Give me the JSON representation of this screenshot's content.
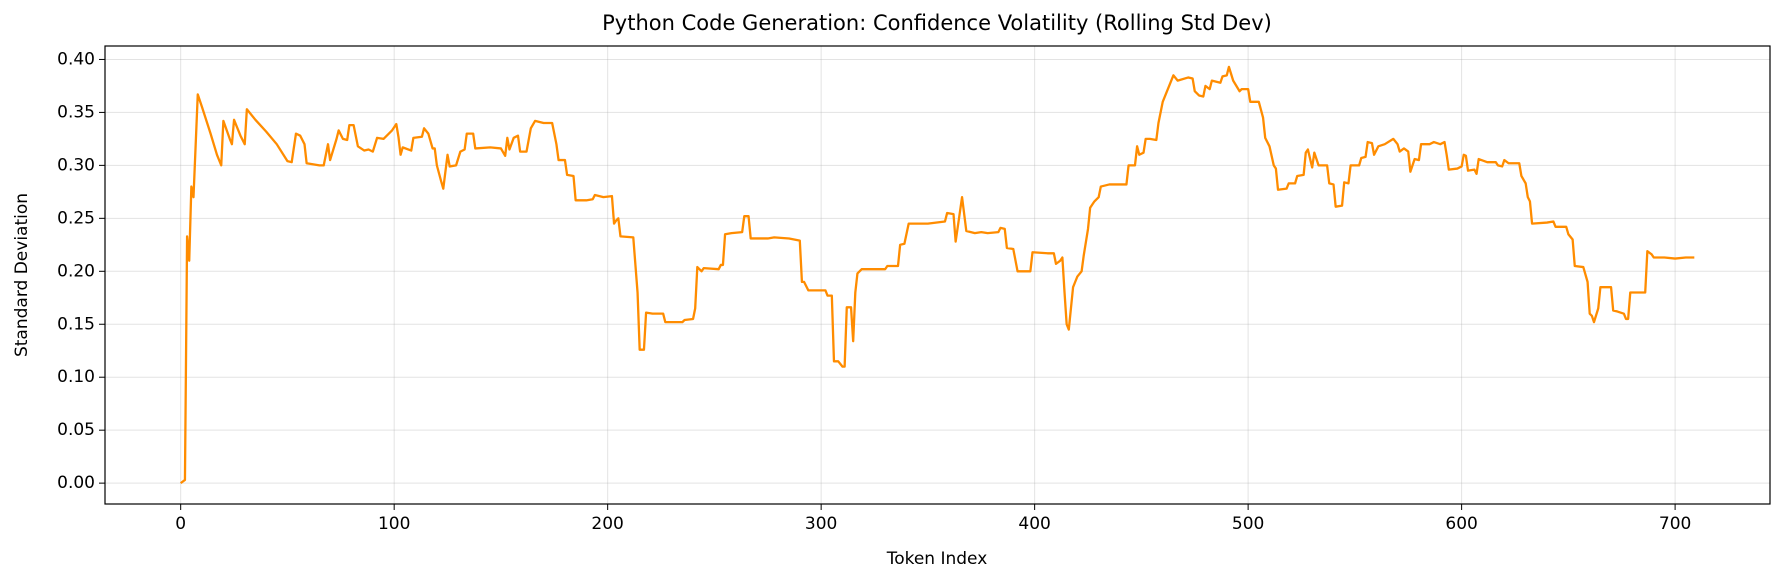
{
  "chart_data": {
    "type": "line",
    "title": "Python Code Generation: Confidence Volatility (Rolling Std Dev)",
    "xlabel": "Token Index",
    "ylabel": "Standard Deviation",
    "color": "#ff8c00",
    "grid": true,
    "xlim": [
      -35.45,
      744.45
    ],
    "xticks": [
      0,
      100,
      200,
      300,
      400,
      500,
      600,
      700
    ],
    "ylim": [
      -0.0197,
      0.4127
    ],
    "yticks": [
      {
        "value": 0,
        "label": "0.00"
      },
      0.05,
      {
        "value": 0.1,
        "label": "0.10"
      },
      0.15,
      {
        "value": 0.2,
        "label": "0.20"
      },
      0.25,
      {
        "value": 0.3,
        "label": "0.30"
      },
      0.35,
      {
        "value": 0.4,
        "label": "0.40"
      }
    ],
    "x": [
      0,
      2,
      3,
      4,
      5,
      6,
      8,
      10,
      14,
      17,
      19,
      20,
      23,
      24,
      25,
      28,
      30,
      31,
      35,
      40,
      45,
      50,
      52,
      54,
      56,
      58,
      59,
      65,
      67,
      69,
      70,
      73,
      74,
      76,
      78,
      79,
      81,
      83,
      86,
      88,
      90,
      92,
      95,
      99,
      101,
      102,
      103,
      104,
      108,
      109,
      113,
      114,
      116,
      118,
      119,
      120,
      122,
      123,
      125,
      126,
      129,
      131,
      133,
      134,
      137,
      138,
      145,
      150,
      152,
      153,
      154,
      156,
      158,
      159,
      162,
      164,
      166,
      170,
      174,
      176,
      177,
      180,
      181,
      184,
      185,
      190,
      193,
      194,
      198,
      202,
      203,
      204,
      205,
      206,
      212,
      214,
      215,
      217,
      218,
      221,
      226,
      227,
      235,
      236,
      240,
      241,
      242,
      244,
      245,
      252,
      253,
      254,
      255,
      258,
      263,
      264,
      266,
      267,
      275,
      278,
      285,
      290,
      291,
      292,
      294,
      302,
      303,
      305,
      306,
      308,
      310,
      311,
      312,
      314,
      315,
      316,
      317,
      319,
      330,
      331,
      336,
      337,
      339,
      341,
      350,
      358,
      359,
      362,
      363,
      365,
      366,
      368,
      372,
      375,
      378,
      383,
      384,
      386,
      387,
      390,
      392,
      398,
      399,
      406,
      409,
      410,
      412,
      413,
      414,
      415,
      416,
      418,
      419,
      420,
      422,
      423,
      425,
      426,
      428,
      430,
      431,
      435,
      443,
      444,
      447,
      448,
      449,
      451,
      452,
      454,
      457,
      458,
      460,
      462,
      463,
      465,
      467,
      472,
      474,
      475,
      477,
      479,
      480,
      482,
      483,
      487,
      488,
      490,
      491,
      493,
      496,
      497,
      500,
      501,
      505,
      507,
      508,
      510,
      512,
      513,
      514,
      518,
      519,
      522,
      523,
      526,
      527,
      528,
      530,
      531,
      533,
      537,
      538,
      540,
      541,
      544,
      545,
      547,
      548,
      552,
      553,
      555,
      556,
      558,
      559,
      561,
      564,
      568,
      570,
      571,
      573,
      575,
      576,
      578,
      580,
      581,
      585,
      587,
      590,
      592,
      593,
      594,
      598,
      600,
      601,
      602,
      603,
      606,
      607,
      608,
      612,
      616,
      617,
      619,
      620,
      622,
      627,
      628,
      630,
      631,
      632,
      633,
      640,
      643,
      644,
      649,
      650,
      652,
      653,
      657,
      659,
      660,
      661,
      662,
      664,
      665,
      670,
      671,
      673,
      676,
      677,
      678,
      679,
      685,
      686,
      687,
      689,
      690,
      695,
      700,
      705,
      709
    ],
    "values": [
      0.0,
      0.003,
      0.233,
      0.21,
      0.28,
      0.27,
      0.367,
      0.355,
      0.33,
      0.31,
      0.3,
      0.342,
      0.325,
      0.32,
      0.343,
      0.328,
      0.32,
      0.353,
      0.343,
      0.332,
      0.32,
      0.304,
      0.303,
      0.33,
      0.328,
      0.32,
      0.302,
      0.3,
      0.3,
      0.32,
      0.305,
      0.325,
      0.333,
      0.325,
      0.324,
      0.338,
      0.338,
      0.318,
      0.314,
      0.315,
      0.313,
      0.326,
      0.325,
      0.333,
      0.339,
      0.327,
      0.31,
      0.317,
      0.314,
      0.326,
      0.327,
      0.335,
      0.33,
      0.316,
      0.316,
      0.3,
      0.285,
      0.278,
      0.31,
      0.299,
      0.3,
      0.313,
      0.315,
      0.33,
      0.33,
      0.316,
      0.317,
      0.316,
      0.309,
      0.326,
      0.315,
      0.326,
      0.328,
      0.313,
      0.313,
      0.335,
      0.342,
      0.34,
      0.34,
      0.32,
      0.305,
      0.305,
      0.291,
      0.29,
      0.267,
      0.267,
      0.268,
      0.272,
      0.27,
      0.271,
      0.245,
      0.248,
      0.25,
      0.233,
      0.232,
      0.18,
      0.126,
      0.126,
      0.161,
      0.16,
      0.16,
      0.152,
      0.152,
      0.154,
      0.155,
      0.165,
      0.204,
      0.2,
      0.203,
      0.202,
      0.206,
      0.206,
      0.235,
      0.236,
      0.237,
      0.252,
      0.252,
      0.231,
      0.231,
      0.232,
      0.231,
      0.229,
      0.19,
      0.19,
      0.182,
      0.182,
      0.177,
      0.177,
      0.115,
      0.115,
      0.11,
      0.11,
      0.166,
      0.166,
      0.134,
      0.18,
      0.198,
      0.202,
      0.202,
      0.205,
      0.205,
      0.225,
      0.226,
      0.245,
      0.245,
      0.247,
      0.255,
      0.254,
      0.228,
      0.256,
      0.27,
      0.238,
      0.236,
      0.237,
      0.236,
      0.237,
      0.241,
      0.24,
      0.222,
      0.221,
      0.2,
      0.2,
      0.218,
      0.217,
      0.217,
      0.207,
      0.21,
      0.213,
      0.18,
      0.15,
      0.145,
      0.185,
      0.19,
      0.195,
      0.2,
      0.215,
      0.24,
      0.26,
      0.266,
      0.27,
      0.28,
      0.282,
      0.282,
      0.3,
      0.3,
      0.318,
      0.31,
      0.312,
      0.325,
      0.325,
      0.324,
      0.34,
      0.36,
      0.37,
      0.375,
      0.385,
      0.38,
      0.383,
      0.382,
      0.37,
      0.366,
      0.365,
      0.375,
      0.372,
      0.38,
      0.378,
      0.384,
      0.385,
      0.393,
      0.38,
      0.37,
      0.372,
      0.372,
      0.36,
      0.36,
      0.345,
      0.326,
      0.318,
      0.3,
      0.297,
      0.277,
      0.278,
      0.283,
      0.283,
      0.29,
      0.291,
      0.312,
      0.315,
      0.298,
      0.312,
      0.3,
      0.3,
      0.283,
      0.282,
      0.261,
      0.262,
      0.284,
      0.283,
      0.3,
      0.3,
      0.307,
      0.308,
      0.322,
      0.321,
      0.31,
      0.318,
      0.32,
      0.325,
      0.32,
      0.313,
      0.316,
      0.313,
      0.294,
      0.306,
      0.305,
      0.32,
      0.32,
      0.322,
      0.32,
      0.322,
      0.31,
      0.296,
      0.297,
      0.299,
      0.31,
      0.309,
      0.295,
      0.296,
      0.292,
      0.306,
      0.303,
      0.303,
      0.3,
      0.299,
      0.305,
      0.302,
      0.302,
      0.29,
      0.283,
      0.27,
      0.266,
      0.245,
      0.246,
      0.247,
      0.242,
      0.242,
      0.235,
      0.23,
      0.205,
      0.204,
      0.19,
      0.16,
      0.158,
      0.152,
      0.165,
      0.185,
      0.185,
      0.163,
      0.162,
      0.16,
      0.155,
      0.155,
      0.18,
      0.18,
      0.18,
      0.219,
      0.216,
      0.213,
      0.213,
      0.212,
      0.213,
      0.213
    ]
  }
}
